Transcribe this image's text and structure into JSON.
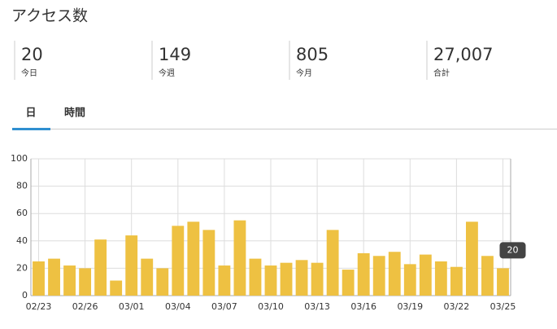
{
  "header": {
    "title": "アクセス数"
  },
  "stats": [
    {
      "value": "20",
      "label": "今日"
    },
    {
      "value": "149",
      "label": "今週"
    },
    {
      "value": "805",
      "label": "今月"
    },
    {
      "value": "27,007",
      "label": "合計"
    }
  ],
  "tabs": [
    "日",
    "時間"
  ],
  "chart_data": {
    "type": "bar",
    "categories": [
      "02/23",
      null,
      null,
      "02/26",
      null,
      null,
      "03/01",
      null,
      null,
      "03/04",
      null,
      null,
      "03/07",
      null,
      null,
      "03/10",
      null,
      null,
      "03/13",
      null,
      null,
      "03/16",
      null,
      null,
      "03/19",
      null,
      null,
      "03/22",
      null,
      null,
      "03/25"
    ],
    "values": [
      25,
      27,
      22,
      20,
      41,
      11,
      44,
      27,
      20,
      51,
      54,
      48,
      22,
      55,
      27,
      22,
      24,
      26,
      24,
      48,
      19,
      31,
      29,
      32,
      23,
      30,
      25,
      21,
      54,
      29,
      20
    ],
    "color": "#eec142",
    "ylim": [
      0,
      100
    ],
    "yticks": [
      0,
      20,
      40,
      60,
      80,
      100
    ],
    "grid": true
  }
}
